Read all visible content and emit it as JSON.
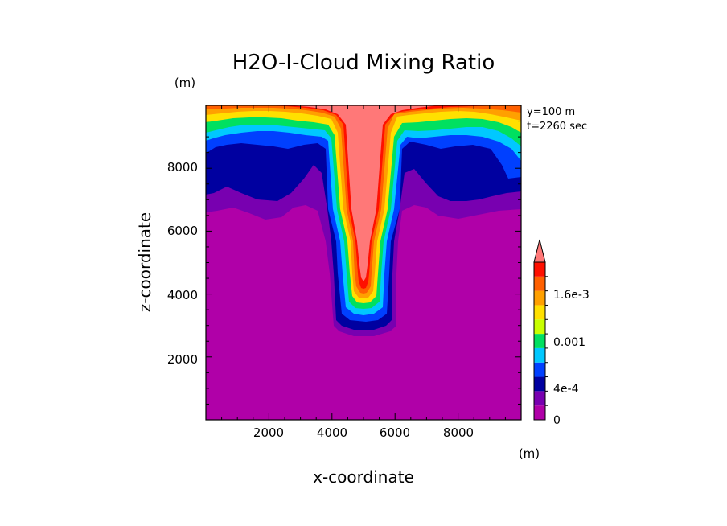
{
  "chart_data": {
    "type": "heatmap",
    "title": "H2O-I-Cloud Mixing Ratio",
    "xlabel": "x-coordinate",
    "ylabel": "z-coordinate",
    "x_unit": "(m)",
    "z_unit": "(m)",
    "xlim": [
      0,
      10000
    ],
    "zlim": [
      0,
      10000
    ],
    "x_ticks": [
      "2000",
      "4000",
      "6000",
      "8000"
    ],
    "z_ticks": [
      "2000",
      "4000",
      "6000",
      "8000"
    ],
    "annotations": [
      "y=100 m",
      "t=2260 sec"
    ],
    "colorbar": {
      "tick_labels": [
        "0",
        "4e-4",
        "0.001",
        "1.6e-3"
      ],
      "colors": [
        "#b000a8",
        "#7800b0",
        "#0000a0",
        "#0040ff",
        "#00c8ff",
        "#00e060",
        "#c8ff00",
        "#ffe000",
        "#ffa000",
        "#ff6000",
        "#ff1000",
        "#ff7878"
      ],
      "extend": "max"
    }
  }
}
